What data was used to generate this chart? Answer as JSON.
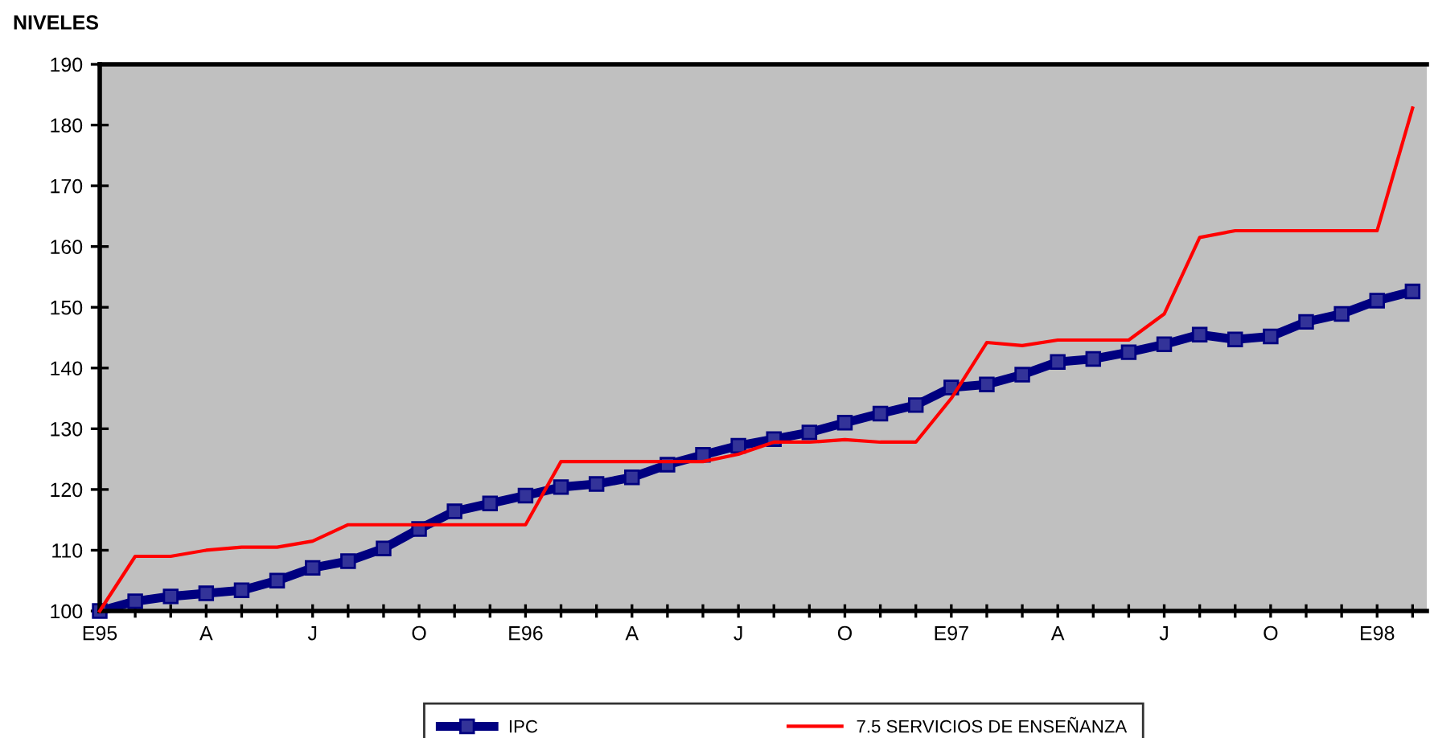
{
  "chart_data": {
    "type": "line",
    "ylabel": "NIVELES",
    "categories": [
      "E95",
      null,
      null,
      "A",
      null,
      null,
      "J",
      null,
      null,
      "O",
      null,
      null,
      "E96",
      null,
      null,
      "A",
      null,
      null,
      "J",
      null,
      null,
      "O",
      null,
      null,
      "E97",
      null,
      null,
      "A",
      null,
      null,
      "J",
      null,
      null,
      "O",
      null,
      null,
      "E98",
      null
    ],
    "series": [
      {
        "name": "IPC",
        "color": "#000080",
        "marker": "square",
        "values": [
          100,
          101.6,
          102.4,
          102.9,
          103.4,
          105,
          107.1,
          108.2,
          110.3,
          113.5,
          116.4,
          117.7,
          119,
          120.4,
          120.9,
          122,
          124.1,
          125.7,
          127.2,
          128.3,
          129.4,
          131,
          132.5,
          133.9,
          136.8,
          137.3,
          138.9,
          141,
          141.5,
          142.6,
          143.9,
          145.5,
          144.7,
          145.2,
          147.6,
          148.9,
          151.1,
          152.6
        ]
      },
      {
        "name": "7.5 SERVICIOS DE ENSEÑANZA",
        "color": "#ff0000",
        "marker": "none",
        "values": [
          100,
          109,
          109,
          110,
          110.5,
          110.5,
          111.5,
          114.2,
          114.2,
          114.2,
          114.2,
          114.2,
          114.2,
          124.6,
          124.6,
          124.6,
          124.6,
          124.6,
          125.8,
          127.8,
          127.8,
          128.2,
          127.8,
          127.8,
          135,
          144.2,
          143.7,
          144.6,
          144.6,
          144.6,
          148.9,
          161.5,
          162.6,
          162.6,
          162.6,
          162.6,
          162.6,
          182.8
        ]
      }
    ],
    "ylim": [
      100,
      190
    ],
    "yticks": [
      100,
      110,
      120,
      130,
      140,
      150,
      160,
      170,
      180,
      190
    ],
    "grid": false,
    "legend": "bottom",
    "line_style": "solid"
  }
}
